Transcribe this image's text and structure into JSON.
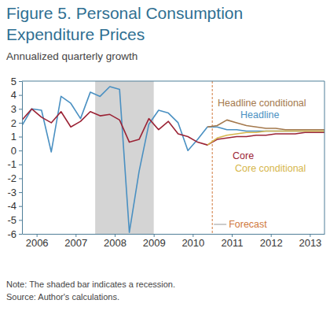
{
  "chart_data": {
    "type": "line",
    "title": "Figure 5. Personal Consumption Expenditure Prices",
    "subtitle": "Annualized quarterly growth",
    "note": "Note: The shaded bar indicates a recession.",
    "source": "Source: Author's calculations.",
    "x": [
      2006.125,
      2006.375,
      2006.625,
      2006.875,
      2007.125,
      2007.375,
      2007.625,
      2007.875,
      2008.125,
      2008.375,
      2008.625,
      2008.875,
      2009.125,
      2009.375,
      2009.625,
      2009.875,
      2010.125,
      2010.375,
      2010.625,
      2010.875,
      2011.125,
      2011.375,
      2011.625,
      2011.875,
      2012.125,
      2012.375,
      2012.625,
      2012.875,
      2013.125,
      2013.375,
      2013.625,
      2013.875
    ],
    "series": [
      {
        "name": "Headline",
        "color": "#4a90c2",
        "values": [
          1.8,
          3.0,
          2.9,
          -0.1,
          3.9,
          3.4,
          2.3,
          4.2,
          3.9,
          4.6,
          4.4,
          -5.9,
          -1.5,
          1.9,
          2.9,
          2.7,
          2.0,
          0.0,
          0.8,
          1.7,
          1.7,
          1.5,
          1.5,
          1.4,
          1.4,
          1.4,
          1.4,
          1.4,
          1.4,
          1.4,
          1.4,
          1.4
        ]
      },
      {
        "name": "Headline conditional",
        "color": "#a4784c",
        "values": [
          null,
          null,
          null,
          null,
          null,
          null,
          null,
          null,
          null,
          null,
          null,
          null,
          null,
          null,
          null,
          null,
          null,
          null,
          null,
          1.7,
          1.8,
          2.2,
          2.0,
          1.8,
          1.7,
          1.6,
          1.6,
          1.5,
          1.5,
          1.5,
          1.5,
          1.5
        ]
      },
      {
        "name": "Core",
        "color": "#9b2335",
        "values": [
          2.2,
          3.0,
          2.4,
          2.0,
          2.8,
          1.7,
          2.1,
          2.8,
          2.5,
          2.6,
          2.2,
          0.6,
          0.8,
          2.3,
          1.5,
          2.1,
          1.2,
          1.0,
          0.6,
          0.4,
          0.8,
          0.9,
          1.0,
          1.0,
          1.1,
          1.1,
          1.2,
          1.2,
          1.2,
          1.3,
          1.3,
          1.3
        ]
      },
      {
        "name": "Core conditional",
        "color": "#d6b64c",
        "values": [
          null,
          null,
          null,
          null,
          null,
          null,
          null,
          null,
          null,
          null,
          null,
          null,
          null,
          null,
          null,
          null,
          null,
          null,
          null,
          0.4,
          0.9,
          1.1,
          1.2,
          1.3,
          1.3,
          1.4,
          1.4,
          1.4,
          1.4,
          1.4,
          1.4,
          1.4
        ]
      }
    ],
    "xlim": [
      2006.125,
      2013.875
    ],
    "xticks": [
      {
        "value": 2006.5,
        "label": "2006"
      },
      {
        "value": 2007.5,
        "label": "2007"
      },
      {
        "value": 2008.5,
        "label": "2008"
      },
      {
        "value": 2009.5,
        "label": "2009"
      },
      {
        "value": 2010.5,
        "label": "2010"
      },
      {
        "value": 2011.5,
        "label": "2011"
      },
      {
        "value": 2012.5,
        "label": "2012"
      },
      {
        "value": 2013.5,
        "label": "2013"
      }
    ],
    "ylim": [
      -6,
      5
    ],
    "yticks": [
      -6,
      -5,
      -4,
      -3,
      -2,
      -1,
      0,
      1,
      2,
      3,
      4,
      5
    ],
    "grid": false,
    "recession": {
      "start": 2008,
      "end": 2009.5
    },
    "forecast": {
      "x": 2011,
      "label": "Forecast"
    }
  }
}
